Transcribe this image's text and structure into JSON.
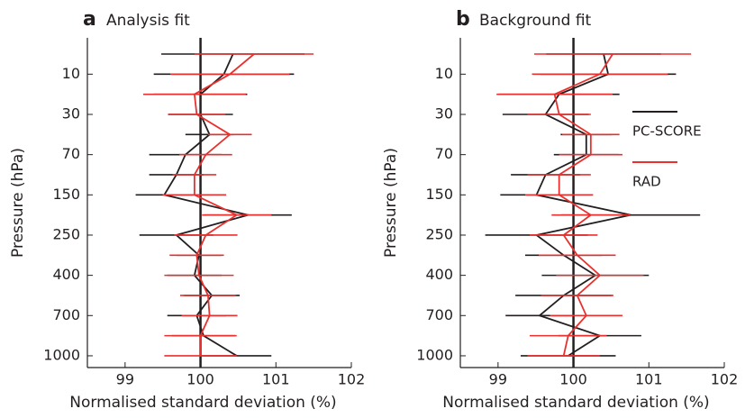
{
  "chart_data": [
    {
      "type": "line",
      "orientation": "horizontal",
      "label": "a",
      "title": "Analysis fit",
      "xlabel": "Normalised standard deviation (%)",
      "ylabel": "Pressure (hPa)",
      "categories": [
        null,
        "10",
        null,
        "30",
        null,
        "70",
        null,
        "150",
        null,
        "250",
        null,
        "400",
        null,
        "700",
        null,
        "1000"
      ],
      "xlim": [
        98.5,
        102
      ],
      "xticks": [
        99,
        100,
        101,
        102
      ],
      "vline": 100,
      "series": [
        {
          "color": "#231f20",
          "values": [
            100.43,
            100.31,
            100.0,
            100.0,
            100.12,
            99.8,
            99.68,
            99.52,
            100.63,
            99.68,
            99.98,
            99.92,
            100.15,
            99.95,
            100.04,
            100.48
          ],
          "errors": [
            0.95,
            0.93,
            0.62,
            0.43,
            0.32,
            0.48,
            0.36,
            0.38,
            0.58,
            0.49,
            0.3,
            0.36,
            0.37,
            0.39,
            0.42,
            0.46
          ]
        },
        {
          "color": "#e8312f",
          "values": [
            100.71,
            100.39,
            99.92,
            99.95,
            100.39,
            100.07,
            99.92,
            99.92,
            100.48,
            100.07,
            99.95,
            99.98,
            100.1,
            100.12,
            100.0,
            100.0
          ],
          "errors": [
            0.79,
            0.79,
            0.68,
            0.38,
            0.29,
            0.35,
            0.29,
            0.42,
            0.46,
            0.42,
            0.36,
            0.46,
            0.37,
            0.37,
            0.48,
            0.48
          ]
        }
      ]
    },
    {
      "type": "line",
      "orientation": "horizontal",
      "label": "b",
      "title": "Background fit",
      "xlabel": "Normalised standard deviation (%)",
      "ylabel": "Pressure (hPa)",
      "categories": [
        null,
        "10",
        null,
        "30",
        null,
        "70",
        null,
        "150",
        null,
        "250",
        null,
        "400",
        null,
        "700",
        null,
        "1000"
      ],
      "xlim": [
        98.5,
        102
      ],
      "xticks": [
        99,
        100,
        101,
        102
      ],
      "vline": 100,
      "legend": "right",
      "series": [
        {
          "name": "PC-SCORE",
          "color": "#231f20",
          "values": [
            100.4,
            100.46,
            99.81,
            99.63,
            100.17,
            100.17,
            99.63,
            99.51,
            100.76,
            99.51,
            99.87,
            100.29,
            99.87,
            99.55,
            100.35,
            99.93
          ],
          "errors": [
            0.76,
            0.9,
            0.8,
            0.57,
            0.34,
            0.43,
            0.46,
            0.48,
            0.92,
            0.68,
            0.51,
            0.71,
            0.64,
            0.45,
            0.55,
            0.63
          ]
        },
        {
          "name": "RAD",
          "color": "#e8312f",
          "values": [
            100.52,
            100.35,
            99.75,
            99.81,
            100.23,
            100.23,
            99.81,
            99.81,
            100.23,
            99.87,
            100.05,
            100.35,
            100.05,
            100.17,
            99.93,
            99.87
          ],
          "errors": [
            1.04,
            0.9,
            0.77,
            0.42,
            0.38,
            0.42,
            0.42,
            0.45,
            0.52,
            0.45,
            0.51,
            0.58,
            0.48,
            0.48,
            0.51,
            0.48
          ]
        }
      ]
    }
  ]
}
